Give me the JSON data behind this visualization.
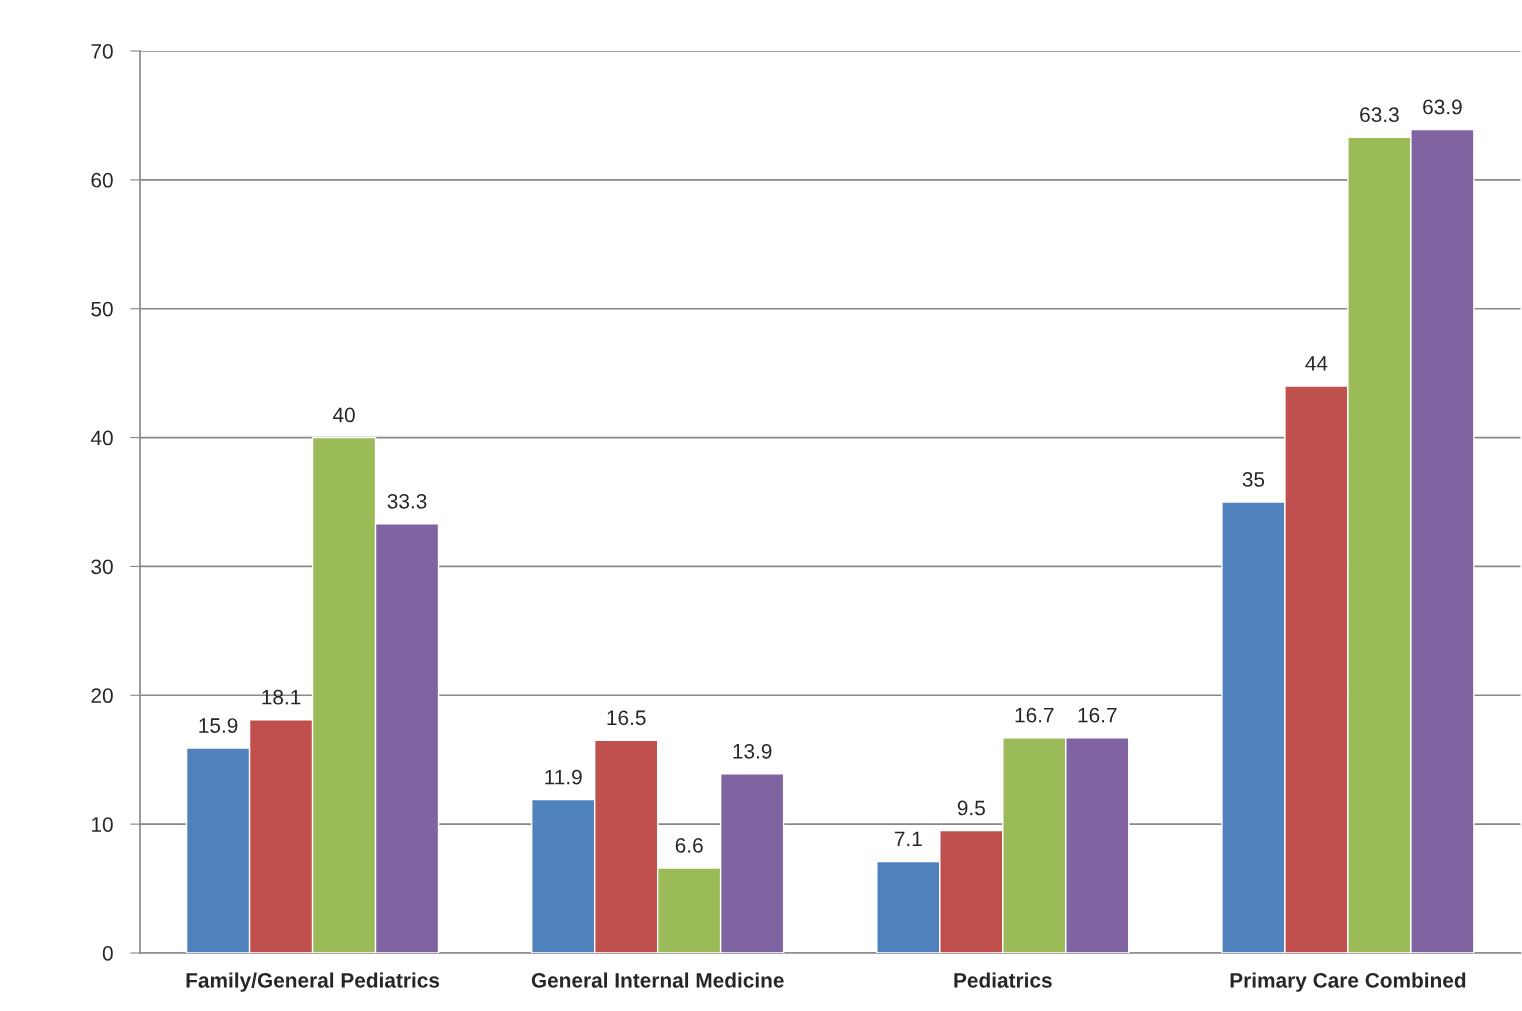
{
  "chart_data": {
    "type": "bar",
    "categories": [
      "Family/General Pediatrics",
      "General Internal Medicine",
      "Pediatrics",
      "Primary Care Combined"
    ],
    "series": [
      {
        "color": "#4f81bd",
        "values": [
          15.9,
          11.9,
          7.1,
          35
        ]
      },
      {
        "color": "#c0504d",
        "values": [
          18.1,
          16.5,
          9.5,
          44
        ]
      },
      {
        "color": "#9bbb59",
        "values": [
          40,
          6.6,
          16.7,
          63.3
        ]
      },
      {
        "color": "#8064a2",
        "values": [
          33.3,
          13.9,
          16.7,
          63.9
        ]
      }
    ],
    "ylim": [
      0,
      70
    ],
    "yticks": [
      0,
      10,
      20,
      30,
      40,
      50,
      60,
      70
    ],
    "grid": "y",
    "data_labels": true
  }
}
